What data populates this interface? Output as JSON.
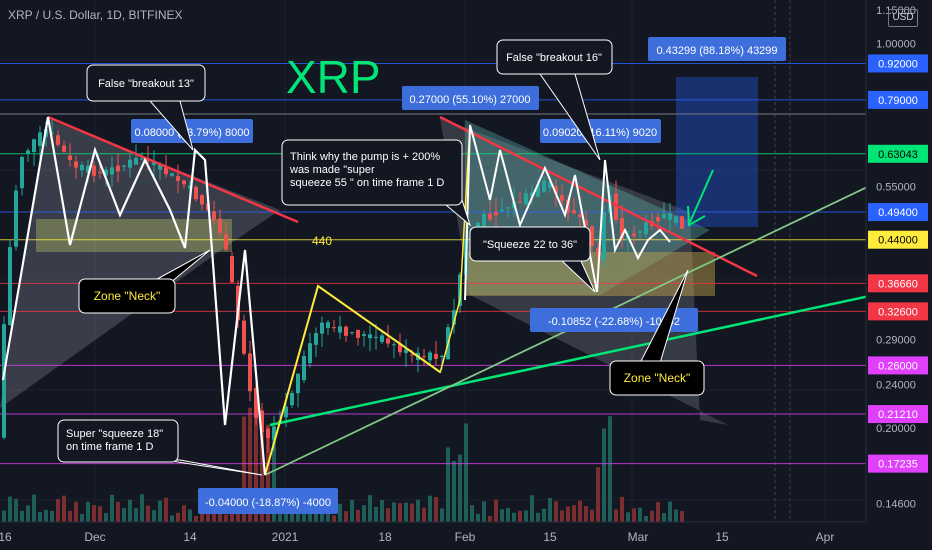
{
  "header": {
    "symbol": "XRP / U.S. Dollar, 1D, BITFINEX",
    "currency": "USD"
  },
  "chart_data": {
    "type": "candlestick",
    "title": "XRP",
    "instrument": "XRP / U.S. Dollar",
    "timeframe": "1D",
    "exchange": "BITFINEX",
    "y_scale": "log",
    "ylim": [
      0.135,
      1.2
    ],
    "x_ticks": [
      "16",
      "Dec",
      "14",
      "2021",
      "18",
      "Feb",
      "15",
      "Mar",
      "15",
      "Apr"
    ],
    "y_ticks": [
      "1.15000",
      "1.00000",
      "0.55000",
      "0.29000",
      "0.24000",
      "0.20000",
      "0.14600"
    ],
    "price_levels": [
      {
        "value": 0.92,
        "label": "0.92000",
        "color": "#2962ff"
      },
      {
        "value": 0.79,
        "label": "0.79000",
        "color": "#2962ff"
      },
      {
        "value": 0.63043,
        "label": "0.63043",
        "color": "#00e676"
      },
      {
        "value": 0.494,
        "label": "0.49400",
        "color": "#2962ff"
      },
      {
        "value": 0.44,
        "label": "0.44000",
        "color": "#ffeb3b"
      },
      {
        "value": 0.3666,
        "label": "0.36660",
        "color": "#f23645"
      },
      {
        "value": 0.326,
        "label": "0.32600",
        "color": "#f23645"
      },
      {
        "value": 0.26,
        "label": "0.26000",
        "color": "#e040fb"
      },
      {
        "value": 0.2121,
        "label": "0.21210",
        "color": "#e040fb"
      },
      {
        "value": 0.17235,
        "label": "0.17235",
        "color": "#e040fb"
      }
    ],
    "annotations": [
      {
        "text": "False \"breakout 13\"",
        "kind": "callout"
      },
      {
        "text": "False \"breakout 16\"",
        "kind": "callout"
      },
      {
        "text": "Zone \"Neck\"",
        "kind": "callout"
      },
      {
        "text": "Zone \"Neck\"",
        "kind": "callout"
      },
      {
        "text": "Think why the pump is + 200%|was made \"super|squeeze 55 \" on time frame 1 D",
        "kind": "note"
      },
      {
        "text": "\"Squeeze 22 to 36\"",
        "kind": "callout"
      },
      {
        "text": "Super \"squeeze 18\"|on time frame 1 D",
        "kind": "callout"
      },
      {
        "text": "440",
        "kind": "level-label"
      }
    ],
    "measurements": [
      {
        "text": "0.08000 (13.79%) 8000"
      },
      {
        "text": "0.27000 (55.10%) 27000"
      },
      {
        "text": "0.09020 (16.11%) 9020"
      },
      {
        "text": "0.43299 (88.18%) 43299"
      },
      {
        "text": "-0.10852 (-22.68%) -10852"
      },
      {
        "text": "-0.04000 (-18.87%) -4000"
      }
    ],
    "zigzag_path": [
      [
        3,
        0.36
      ],
      [
        4,
        0.78
      ],
      [
        5,
        0.45
      ],
      [
        6,
        0.6
      ],
      [
        7,
        0.62
      ],
      [
        8,
        0.45
      ],
      [
        9,
        0.62
      ],
      [
        10,
        0.45
      ],
      [
        11,
        0.5
      ],
      [
        12,
        0.62
      ],
      [
        13,
        0.5
      ],
      [
        14,
        0.42
      ],
      [
        15,
        0.7
      ],
      [
        16,
        0.22
      ],
      [
        17,
        0.4
      ],
      [
        18,
        0.17
      ],
      [
        19,
        0.3
      ],
      [
        20,
        0.18
      ]
    ]
  }
}
